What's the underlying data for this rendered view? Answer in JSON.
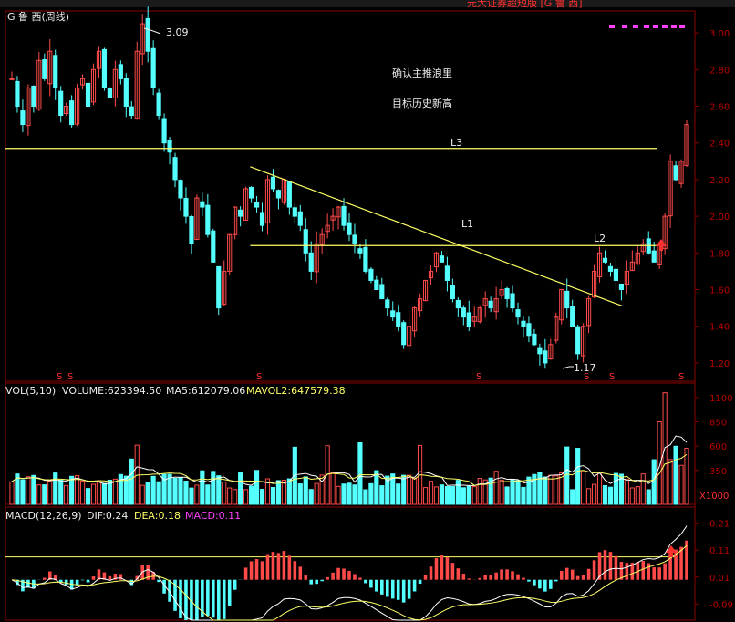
{
  "title": "G 鲁  西(周线)",
  "top_strip_text": "元大证券超短版 [G 鲁  西]",
  "price_panel": {
    "high_label": "3.09",
    "low_label": "1.17",
    "annotations": [
      "确认主推浪里",
      "目标历史新高"
    ],
    "line_labels": {
      "L1": "L1",
      "L2": "L2",
      "L3": "L3"
    },
    "y_ticks": [
      "3.00",
      "2.80",
      "2.60",
      "2.40",
      "2.20",
      "2.00",
      "1.80",
      "1.60",
      "1.40",
      "1.20"
    ],
    "markers": [
      "S",
      "S",
      "S",
      "S",
      "S",
      "S",
      "S"
    ]
  },
  "vol_panel": {
    "header": {
      "name": "VOL(5,10)",
      "volume": "VOLUME:623394.50",
      "ma5": "MA5:612079.06",
      "mavol2": "MAVOL2:647579.38"
    },
    "y_ticks": [
      "1100",
      "850",
      "600",
      "350"
    ],
    "unit": "X1000"
  },
  "macd_panel": {
    "header": {
      "name": "MACD(12,26,9)",
      "dif": "DIF:0.24",
      "dea": "DEA:0.18",
      "macd": "MACD:0.11"
    },
    "y_ticks": [
      "0.21",
      "0.11",
      "0.01",
      "-0.09"
    ]
  },
  "colors": {
    "up": "#ff4a4a",
    "down": "#54ffff",
    "line_yellow": "#ffff66",
    "grid": "#8a0000",
    "white": "#ffffff",
    "magenta": "#ff40ff"
  },
  "chart_data": [
    {
      "type": "candlestick",
      "title": "G 鲁  西(周线)",
      "ylim": [
        1.1,
        3.12
      ],
      "y_ticks": [
        3.0,
        2.8,
        2.6,
        2.4,
        2.2,
        2.0,
        1.8,
        1.6,
        1.4,
        1.2
      ],
      "high": 3.09,
      "low": 1.17,
      "close_path": [
        2.75,
        2.6,
        2.5,
        2.7,
        2.6,
        2.85,
        2.75,
        2.9,
        2.7,
        2.55,
        2.6,
        2.5,
        2.7,
        2.75,
        2.6,
        2.8,
        2.9,
        2.7,
        2.65,
        2.8,
        2.75,
        2.6,
        2.55,
        2.9,
        3.05,
        2.9,
        2.7,
        2.55,
        2.4,
        2.35,
        2.2,
        2.1,
        2.0,
        1.85,
        2.1,
        2.05,
        1.9,
        1.75,
        1.5,
        1.7,
        1.9,
        2.05,
        2.0,
        2.15,
        2.1,
        2.05,
        1.95,
        2.2,
        2.15,
        2.1,
        2.2,
        2.05,
        2.0,
        1.95,
        1.8,
        1.7,
        1.85,
        1.9,
        1.95,
        2.0,
        2.05,
        1.95,
        1.9,
        1.85,
        1.8,
        1.7,
        1.65,
        1.6,
        1.55,
        1.5,
        1.45,
        1.4,
        1.3,
        1.4,
        1.5,
        1.55,
        1.65,
        1.7,
        1.8,
        1.75,
        1.65,
        1.55,
        1.5,
        1.45,
        1.4,
        1.45,
        1.5,
        1.55,
        1.5,
        1.55,
        1.6,
        1.55,
        1.5,
        1.45,
        1.4,
        1.35,
        1.3,
        1.25,
        1.2,
        1.3,
        1.45,
        1.6,
        1.5,
        1.4,
        1.25,
        1.4,
        1.55,
        1.7,
        1.8,
        1.75,
        1.7,
        1.65,
        1.6,
        1.7,
        1.75,
        1.8,
        1.85,
        1.8,
        1.75,
        1.85,
        2.0,
        2.3,
        2.2,
        2.3,
        2.5
      ],
      "lines": [
        {
          "name": "L1",
          "from": [
            0.355,
            2.27
          ],
          "to": [
            0.895,
            1.51
          ]
        },
        {
          "name": "L2",
          "from": [
            0.355,
            1.84
          ],
          "to": [
            0.945,
            1.84
          ]
        },
        {
          "name": "L3",
          "from": [
            0.0,
            2.37
          ],
          "to": [
            0.945,
            2.37
          ]
        }
      ]
    },
    {
      "type": "bar",
      "title": "VOL(5,10)",
      "ylim": [
        0,
        1250
      ],
      "y_ticks": [
        1100,
        850,
        600,
        350
      ],
      "last_volume": 623394.5,
      "ma5": 612079.06,
      "mavol2": 647579.38
    },
    {
      "type": "bar",
      "title": "MACD(12,26,9)",
      "ylim": [
        -0.15,
        0.27
      ],
      "y_ticks": [
        0.21,
        0.11,
        0.01,
        -0.09
      ],
      "dif": 0.24,
      "dea": 0.18,
      "macd": 0.11
    }
  ]
}
